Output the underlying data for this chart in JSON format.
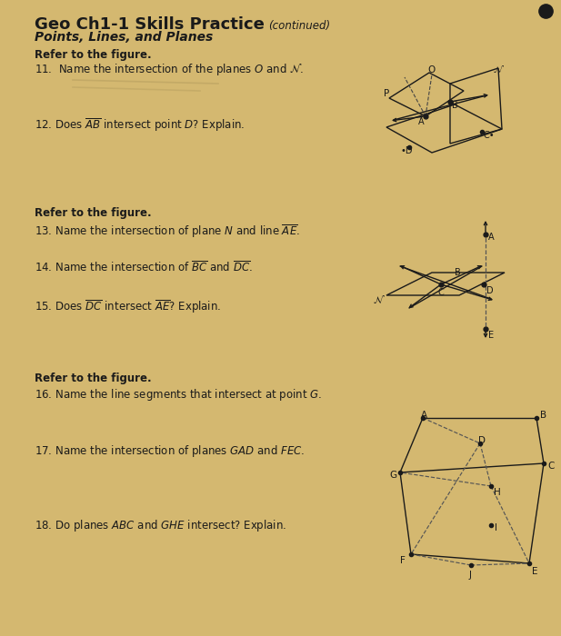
{
  "bg_color": "#d4b483",
  "text_color": "#1a1a1a",
  "title": "Geo Ch1-1 Skills Practice",
  "subtitle": "Points, Lines, and Planes",
  "continued": "(continued)",
  "fig_bg": "#cba96e"
}
